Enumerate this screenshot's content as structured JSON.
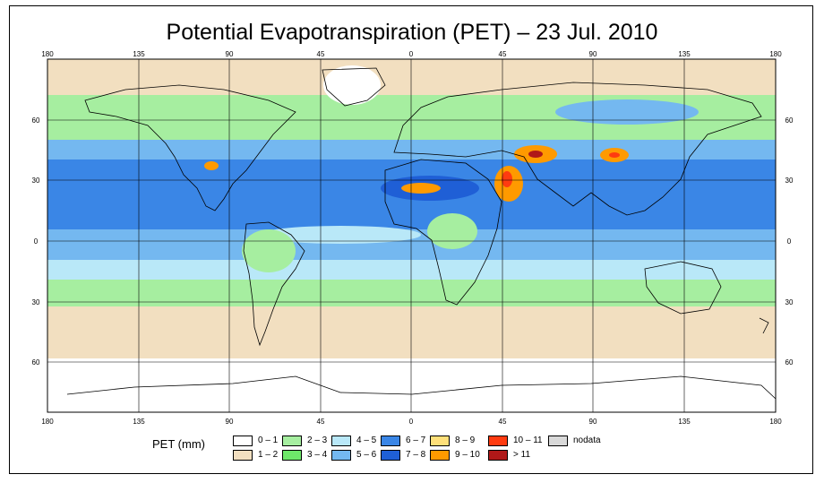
{
  "title": "Potential Evapotranspiration (PET) – 23 Jul. 2010",
  "axes": {
    "lon_labels": [
      "180",
      "135",
      "90",
      "45",
      "0",
      "45",
      "90",
      "135",
      "180"
    ],
    "lat_labels": [
      "60",
      "30",
      "0",
      "30",
      "60"
    ]
  },
  "legend": {
    "title": "PET (mm)",
    "items": [
      {
        "label": "0 – 1",
        "color": "#ffffff"
      },
      {
        "label": "1 – 2",
        "color": "#f2dfc0"
      },
      {
        "label": "2 – 3",
        "color": "#a6eea0"
      },
      {
        "label": "3 – 4",
        "color": "#6ee86a"
      },
      {
        "label": "4 – 5",
        "color": "#b9e8f8"
      },
      {
        "label": "5 – 6",
        "color": "#74b8f0"
      },
      {
        "label": "6 – 7",
        "color": "#3a86e6"
      },
      {
        "label": "7 – 8",
        "color": "#1f5fd6"
      },
      {
        "label": "8 – 9",
        "color": "#ffe07a"
      },
      {
        "label": "9 – 10",
        "color": "#ff9a00"
      },
      {
        "label": "10 – 11",
        "color": "#ff3b10"
      },
      {
        "label": "> 11",
        "color": "#b01818"
      },
      {
        "label": "nodata",
        "color": "#d9d9d9"
      }
    ]
  }
}
